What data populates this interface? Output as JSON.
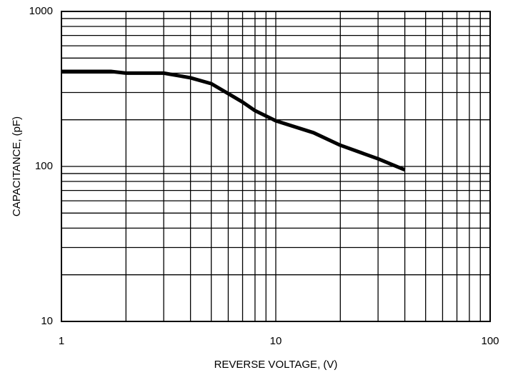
{
  "chart_data": {
    "type": "line",
    "xlabel": "REVERSE VOLTAGE, (V)",
    "ylabel": "CAPACITANCE, (pF)",
    "x": [
      1,
      1.7,
      2,
      3,
      4,
      5,
      6,
      7,
      8,
      10,
      15,
      20,
      30,
      40
    ],
    "values": [
      410,
      410,
      400,
      400,
      373,
      342,
      295,
      260,
      229,
      197,
      165,
      137,
      112,
      95
    ],
    "color": "#000000",
    "xlim": [
      1,
      100
    ],
    "xticks": [
      1,
      10,
      100
    ],
    "ylim": [
      10,
      1000
    ],
    "yticks": [
      10,
      100,
      1000
    ],
    "xlog": true,
    "ylog": true,
    "grid": true
  }
}
